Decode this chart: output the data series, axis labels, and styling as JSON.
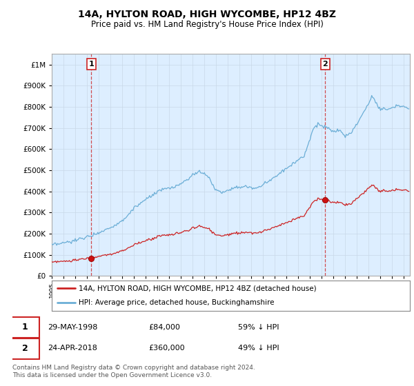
{
  "title": "14A, HYLTON ROAD, HIGH WYCOMBE, HP12 4BZ",
  "subtitle": "Price paid vs. HM Land Registry's House Price Index (HPI)",
  "hpi_label": "HPI: Average price, detached house, Buckinghamshire",
  "property_label": "14A, HYLTON ROAD, HIGH WYCOMBE, HP12 4BZ (detached house)",
  "sale1_date": "29-MAY-1998",
  "sale1_price": 84000,
  "sale1_year": 1998.37,
  "sale1_text": "59% ↓ HPI",
  "sale2_date": "24-APR-2018",
  "sale2_price": 360000,
  "sale2_year": 2018.29,
  "sale2_text": "49% ↓ HPI",
  "footer": "Contains HM Land Registry data © Crown copyright and database right 2024.\nThis data is licensed under the Open Government Licence v3.0.",
  "hpi_color": "#6baed6",
  "property_color": "#cc2222",
  "vline_color": "#cc2222",
  "bg_fill_color": "#ddeeff",
  "background_color": "#ffffff",
  "ylim_max": 1000000,
  "xlim_start": 1995.0,
  "xlim_end": 2025.5,
  "title_fontsize": 10,
  "subtitle_fontsize": 8.5
}
